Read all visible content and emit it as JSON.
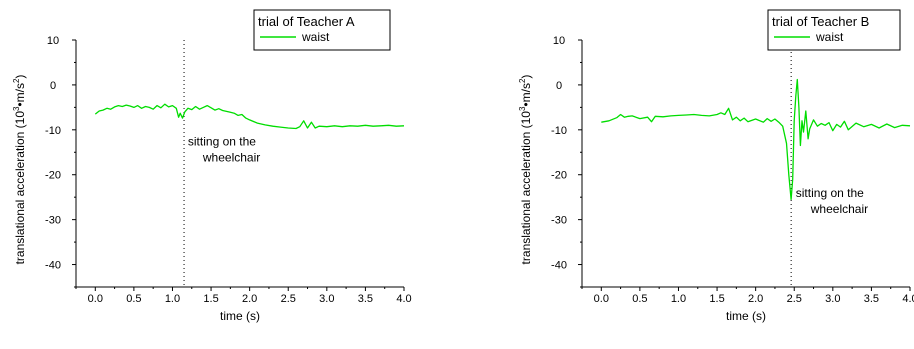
{
  "chart_data": [
    {
      "type": "line",
      "title": "",
      "xlabel": "time (s)",
      "ylabel_prefix": "translational acceleration (10",
      "ylabel_sup3": "3",
      "ylabel_mid": "•m/s",
      "ylabel_sup2": "2",
      "ylabel_suffix": ")",
      "xlim": [
        -0.25,
        4.0
      ],
      "ylim": [
        -45,
        10
      ],
      "xticks": [
        "0.0",
        "0.5",
        "1.0",
        "1.5",
        "2.0",
        "2.5",
        "3.0",
        "3.5",
        "4.0"
      ],
      "yticks": [
        "10",
        "0",
        "-10",
        "-20",
        "-30",
        "-40"
      ],
      "grid": false,
      "legend_position": "top-right",
      "legend_title": "trial of Teacher A",
      "series": [
        {
          "name": "waist",
          "color": "#00dd00",
          "x": [
            0.0,
            0.05,
            0.1,
            0.15,
            0.2,
            0.25,
            0.3,
            0.35,
            0.4,
            0.45,
            0.5,
            0.55,
            0.6,
            0.65,
            0.7,
            0.75,
            0.8,
            0.85,
            0.9,
            0.95,
            1.0,
            1.05,
            1.08,
            1.1,
            1.13,
            1.16,
            1.2,
            1.25,
            1.3,
            1.35,
            1.4,
            1.45,
            1.5,
            1.55,
            1.6,
            1.65,
            1.7,
            1.75,
            1.8,
            1.85,
            1.9,
            1.95,
            2.0,
            2.1,
            2.2,
            2.3,
            2.4,
            2.5,
            2.6,
            2.65,
            2.7,
            2.75,
            2.8,
            2.85,
            2.9,
            3.0,
            3.1,
            3.2,
            3.3,
            3.4,
            3.5,
            3.6,
            3.7,
            3.8,
            3.9,
            4.0
          ],
          "y": [
            -6.5,
            -5.8,
            -5.6,
            -5.2,
            -5.4,
            -4.9,
            -4.6,
            -4.8,
            -4.5,
            -4.7,
            -5.0,
            -4.6,
            -5.2,
            -4.8,
            -5.0,
            -5.4,
            -4.6,
            -5.1,
            -4.3,
            -4.9,
            -4.6,
            -5.2,
            -7.2,
            -6.3,
            -7.4,
            -6.0,
            -5.2,
            -5.5,
            -4.8,
            -5.4,
            -5.0,
            -4.6,
            -5.1,
            -5.6,
            -5.3,
            -5.7,
            -5.9,
            -6.1,
            -6.3,
            -6.8,
            -6.6,
            -7.4,
            -7.8,
            -8.5,
            -8.9,
            -9.2,
            -9.4,
            -9.6,
            -9.7,
            -9.3,
            -8.0,
            -9.6,
            -8.3,
            -9.6,
            -9.2,
            -9.3,
            -9.1,
            -9.3,
            -9.1,
            -9.2,
            -9.0,
            -9.2,
            -9.1,
            -9.0,
            -9.2,
            -9.1
          ]
        }
      ],
      "marker_x": 1.15,
      "annotation": {
        "line1": "sitting on the",
        "line2": "wheelchair",
        "x": 1.2,
        "y": -13.5
      }
    },
    {
      "type": "line",
      "title": "",
      "xlabel": "time (s)",
      "ylabel_prefix": "translational acceleration (10",
      "ylabel_sup3": "3",
      "ylabel_mid": "•m/s",
      "ylabel_sup2": "2",
      "ylabel_suffix": ")",
      "xlim": [
        -0.25,
        4.0
      ],
      "ylim": [
        -45,
        10
      ],
      "xticks": [
        "0.0",
        "0.5",
        "1.0",
        "1.5",
        "2.0",
        "2.5",
        "3.0",
        "3.5",
        "4.0"
      ],
      "yticks": [
        "10",
        "0",
        "-10",
        "-20",
        "-30",
        "-40"
      ],
      "grid": false,
      "legend_position": "top-right",
      "legend_title": "trial of Teacher B",
      "series": [
        {
          "name": "waist",
          "color": "#00dd00",
          "x": [
            0.0,
            0.1,
            0.2,
            0.25,
            0.3,
            0.35,
            0.4,
            0.5,
            0.6,
            0.65,
            0.7,
            0.8,
            0.9,
            1.0,
            1.1,
            1.2,
            1.3,
            1.4,
            1.5,
            1.55,
            1.6,
            1.65,
            1.7,
            1.75,
            1.8,
            1.85,
            1.9,
            2.0,
            2.1,
            2.15,
            2.2,
            2.25,
            2.3,
            2.35,
            2.4,
            2.43,
            2.46,
            2.48,
            2.5,
            2.52,
            2.54,
            2.56,
            2.58,
            2.6,
            2.62,
            2.65,
            2.68,
            2.7,
            2.75,
            2.8,
            2.85,
            2.9,
            2.95,
            3.0,
            3.05,
            3.1,
            3.15,
            3.2,
            3.3,
            3.4,
            3.5,
            3.6,
            3.7,
            3.8,
            3.9,
            4.0
          ],
          "y": [
            -8.3,
            -8.0,
            -7.3,
            -6.6,
            -7.2,
            -7.0,
            -6.9,
            -7.5,
            -7.2,
            -8.2,
            -7.0,
            -7.1,
            -6.9,
            -6.8,
            -6.7,
            -6.6,
            -6.8,
            -6.9,
            -6.6,
            -6.2,
            -6.6,
            -5.2,
            -7.8,
            -7.2,
            -8.0,
            -7.4,
            -8.2,
            -7.6,
            -8.3,
            -7.5,
            -8.1,
            -7.6,
            -8.3,
            -9.2,
            -13.0,
            -20.0,
            -25.5,
            -21.0,
            -8.0,
            -2.5,
            1.2,
            -5.0,
            -13.5,
            -8.0,
            -10.5,
            -5.8,
            -12.0,
            -9.8,
            -7.8,
            -9.2,
            -8.6,
            -9.0,
            -8.4,
            -10.2,
            -8.8,
            -9.4,
            -8.1,
            -10.0,
            -8.5,
            -9.3,
            -8.8,
            -9.6,
            -8.7,
            -9.5,
            -9.0,
            -9.1
          ]
        }
      ],
      "marker_x": 2.46,
      "annotation": {
        "line1": "sitting on the",
        "line2": "wheelchair",
        "x": 2.52,
        "y": -25
      }
    }
  ]
}
